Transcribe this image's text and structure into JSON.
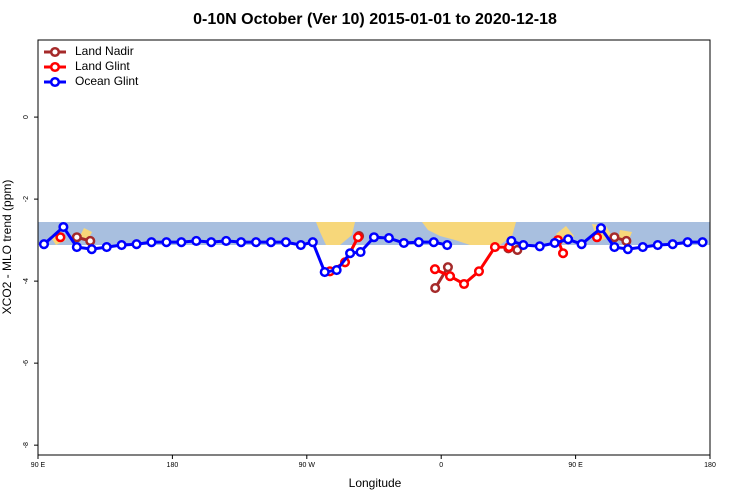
{
  "chart_data": {
    "type": "line",
    "title": "0-10N October (Ver 10)   2015-01-01 to 2020-12-18",
    "x_label": "Longitude",
    "y_label": "XCO2 - MLO trend (ppm)",
    "xlim": [
      90,
      540
    ],
    "ylim": [
      -8.24,
      1.88
    ],
    "xticks": [
      {
        "value": 90,
        "label": "90 E"
      },
      180,
      {
        "value": 270,
        "label": "90 W"
      },
      {
        "value": 360,
        "label": "0"
      },
      {
        "value": 450,
        "label": "90 E"
      },
      {
        "value": 540,
        "label": "180"
      }
    ],
    "yticks": [
      0,
      -2,
      -4,
      -6,
      -8
    ],
    "legend": "top-left",
    "series": [
      {
        "name": "Land Nadir",
        "color": "#a52a2a",
        "x": [
          116,
          125,
          200,
          305,
          330,
          356,
          364.5,
          385,
          405,
          411,
          440,
          476,
          484
        ],
        "values": [
          -2.93,
          -3.02,
          null,
          -2.9,
          null,
          -4.17,
          -3.66,
          null,
          -3.2,
          -3.24,
          null,
          -2.93,
          -3.02
        ]
      },
      {
        "name": "Land Glint",
        "color": "#ff0000",
        "x": [
          105,
          200,
          285.5,
          295.6,
          304.3,
          330,
          355.8,
          365.9,
          375.3,
          385.3,
          396,
          405.4,
          420,
          438.2,
          441.6,
          450,
          464.3
        ],
        "values": [
          -2.93,
          null,
          -3.76,
          -3.54,
          -2.93,
          null,
          -3.71,
          -3.88,
          -4.07,
          -3.76,
          -3.17,
          -3.17,
          null,
          -3.0,
          -3.32,
          null,
          -2.93
        ]
      },
      {
        "name": "Ocean Glint",
        "color": "#0000ff",
        "x": [
          94,
          107,
          116,
          126,
          136,
          146,
          156,
          166,
          176,
          186,
          196,
          206,
          216,
          226,
          236,
          246,
          256,
          266,
          274,
          282,
          290,
          299,
          306,
          315,
          325,
          335,
          345,
          355,
          364,
          385,
          407,
          415,
          426,
          436,
          445,
          454,
          467,
          476,
          485,
          495,
          505,
          515,
          525,
          535
        ],
        "values": [
          -3.1,
          -2.68,
          -3.17,
          -3.22,
          -3.17,
          -3.12,
          -3.1,
          -3.05,
          -3.05,
          -3.05,
          -3.02,
          -3.05,
          -3.02,
          -3.05,
          -3.05,
          -3.05,
          -3.05,
          -3.12,
          -3.05,
          -3.78,
          -3.73,
          -3.32,
          -3.29,
          -2.93,
          -2.95,
          -3.07,
          -3.05,
          -3.05,
          -3.12,
          null,
          -3.02,
          -3.12,
          -3.15,
          -3.07,
          -2.98,
          -3.1,
          -2.71,
          -3.17,
          -3.22,
          -3.17,
          -3.12,
          -3.1,
          -3.05,
          -3.05
        ]
      }
    ]
  }
}
